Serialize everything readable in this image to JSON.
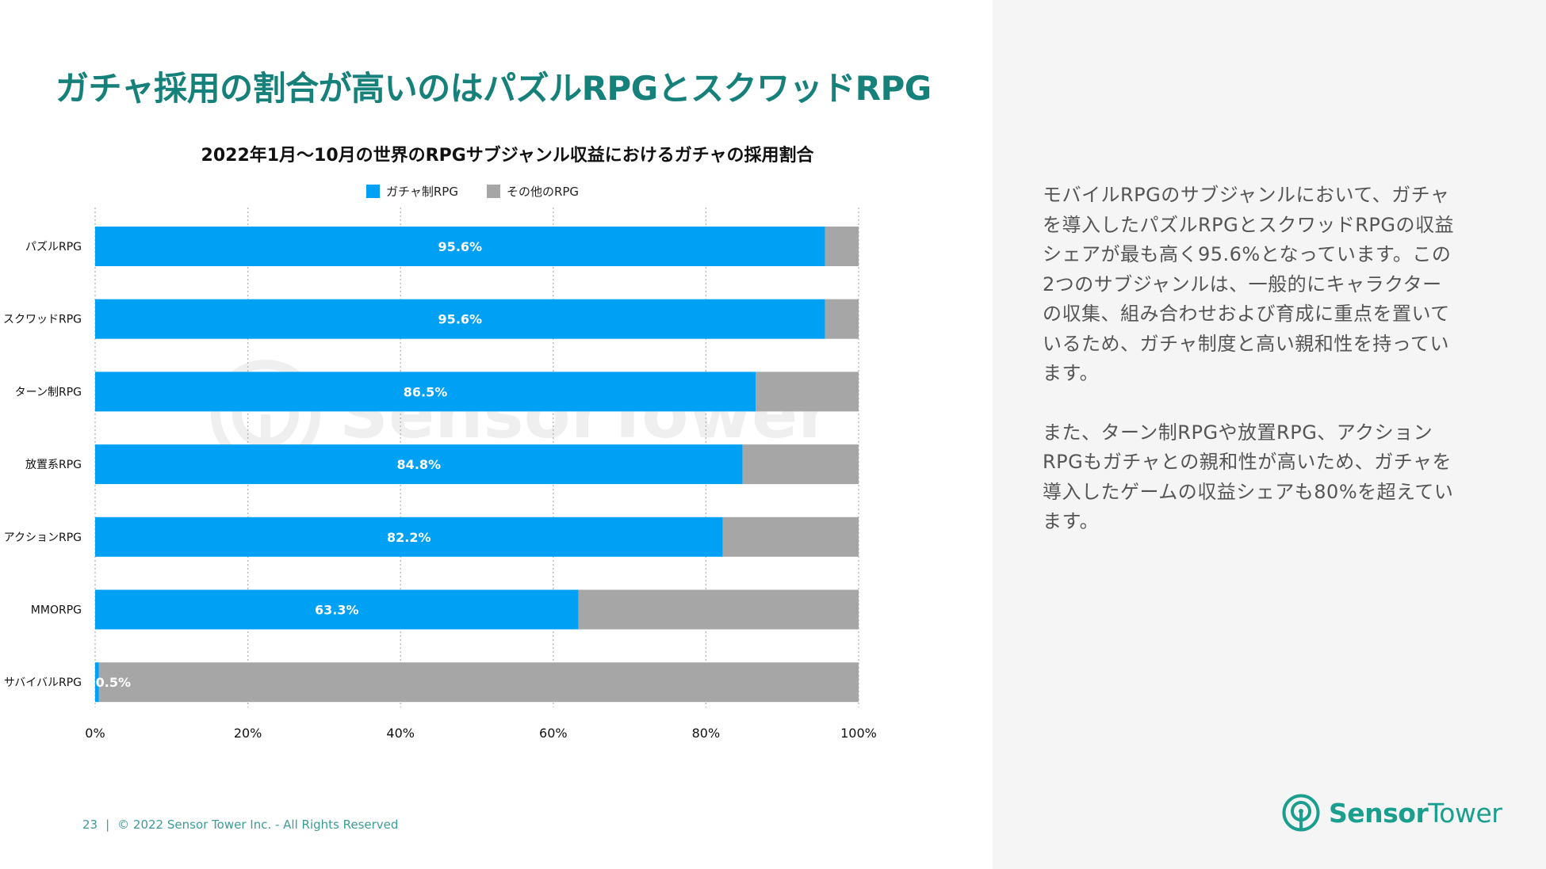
{
  "page": {
    "title": "ガチャ採用の割合が高いのはパズルRPGとスクワッドRPG",
    "body_paragraphs": [
      "モバイルRPGのサブジャンルにおいて、ガチャを導入したパズルRPGとスクワッドRPGの収益シェアが最も高く95.6%となっています。この2つのサブジャンルは、一般的にキャラクターの収集、組み合わせおよび育成に重点を置いているため、ガチャ制度と高い親和性を持っています。",
      "また、ターン制RPGや放置RPG、アクションRPGもガチャとの親和性が高いため、ガチャを導入したゲームの収益シェアも80%を超えています。"
    ],
    "footer": {
      "page_number": "23",
      "separator": "|",
      "copyright": "© 2022 Sensor Tower Inc. - All Rights Reserved"
    },
    "logo": {
      "brand_bold": "Sensor",
      "brand_light": "Tower",
      "icon": "sensor-tower-logo-icon"
    },
    "watermark": "SensorTower"
  },
  "colors": {
    "title": "#16807a",
    "gacha": "#00a0f5",
    "other": "#a6a6a6",
    "right_panel_bg": "#f5f5f6"
  },
  "chart_data": {
    "type": "bar",
    "orientation": "horizontal",
    "stacked": true,
    "title": "2022年1月〜10月の世界のRPGサブジャンル収益におけるガチャの採用割合",
    "categories": [
      "パズルRPG",
      "スクワッドRPG",
      "ターン制RPG",
      "放置系RPG",
      "アクションRPG",
      "MMORPG",
      "サバイバルRPG"
    ],
    "series": [
      {
        "name": "ガチャ制RPG",
        "values": [
          95.6,
          95.6,
          86.5,
          84.8,
          82.2,
          63.3,
          0.5
        ],
        "labels": [
          "95.6%",
          "95.6%",
          "86.5%",
          "84.8%",
          "82.2%",
          "63.3%",
          "0.5%"
        ]
      },
      {
        "name": "その他のRPG",
        "values": [
          4.4,
          4.4,
          13.5,
          15.2,
          17.8,
          36.7,
          99.5
        ]
      }
    ],
    "xlim": [
      0,
      100
    ],
    "xticks": [
      "0%",
      "20%",
      "40%",
      "60%",
      "80%",
      "100%"
    ],
    "grid": "vertical-dotted",
    "legend": "top-center"
  }
}
